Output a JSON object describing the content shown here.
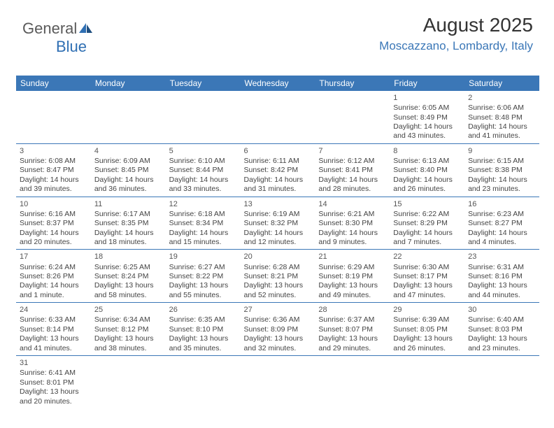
{
  "logo": {
    "text1": "General",
    "text2": "Blue"
  },
  "header": {
    "month": "August 2025",
    "location": "Moscazzano, Lombardy, Italy"
  },
  "colors": {
    "header_bg": "#3b77b7",
    "header_text": "#ffffff",
    "accent": "#3b77b7",
    "body_text": "#444444"
  },
  "weekdays": [
    "Sunday",
    "Monday",
    "Tuesday",
    "Wednesday",
    "Thursday",
    "Friday",
    "Saturday"
  ],
  "weeks": [
    [
      null,
      null,
      null,
      null,
      null,
      {
        "day": "1",
        "sunrise": "Sunrise: 6:05 AM",
        "sunset": "Sunset: 8:49 PM",
        "daylight": "Daylight: 14 hours and 43 minutes."
      },
      {
        "day": "2",
        "sunrise": "Sunrise: 6:06 AM",
        "sunset": "Sunset: 8:48 PM",
        "daylight": "Daylight: 14 hours and 41 minutes."
      }
    ],
    [
      {
        "day": "3",
        "sunrise": "Sunrise: 6:08 AM",
        "sunset": "Sunset: 8:47 PM",
        "daylight": "Daylight: 14 hours and 39 minutes."
      },
      {
        "day": "4",
        "sunrise": "Sunrise: 6:09 AM",
        "sunset": "Sunset: 8:45 PM",
        "daylight": "Daylight: 14 hours and 36 minutes."
      },
      {
        "day": "5",
        "sunrise": "Sunrise: 6:10 AM",
        "sunset": "Sunset: 8:44 PM",
        "daylight": "Daylight: 14 hours and 33 minutes."
      },
      {
        "day": "6",
        "sunrise": "Sunrise: 6:11 AM",
        "sunset": "Sunset: 8:42 PM",
        "daylight": "Daylight: 14 hours and 31 minutes."
      },
      {
        "day": "7",
        "sunrise": "Sunrise: 6:12 AM",
        "sunset": "Sunset: 8:41 PM",
        "daylight": "Daylight: 14 hours and 28 minutes."
      },
      {
        "day": "8",
        "sunrise": "Sunrise: 6:13 AM",
        "sunset": "Sunset: 8:40 PM",
        "daylight": "Daylight: 14 hours and 26 minutes."
      },
      {
        "day": "9",
        "sunrise": "Sunrise: 6:15 AM",
        "sunset": "Sunset: 8:38 PM",
        "daylight": "Daylight: 14 hours and 23 minutes."
      }
    ],
    [
      {
        "day": "10",
        "sunrise": "Sunrise: 6:16 AM",
        "sunset": "Sunset: 8:37 PM",
        "daylight": "Daylight: 14 hours and 20 minutes."
      },
      {
        "day": "11",
        "sunrise": "Sunrise: 6:17 AM",
        "sunset": "Sunset: 8:35 PM",
        "daylight": "Daylight: 14 hours and 18 minutes."
      },
      {
        "day": "12",
        "sunrise": "Sunrise: 6:18 AM",
        "sunset": "Sunset: 8:34 PM",
        "daylight": "Daylight: 14 hours and 15 minutes."
      },
      {
        "day": "13",
        "sunrise": "Sunrise: 6:19 AM",
        "sunset": "Sunset: 8:32 PM",
        "daylight": "Daylight: 14 hours and 12 minutes."
      },
      {
        "day": "14",
        "sunrise": "Sunrise: 6:21 AM",
        "sunset": "Sunset: 8:30 PM",
        "daylight": "Daylight: 14 hours and 9 minutes."
      },
      {
        "day": "15",
        "sunrise": "Sunrise: 6:22 AM",
        "sunset": "Sunset: 8:29 PM",
        "daylight": "Daylight: 14 hours and 7 minutes."
      },
      {
        "day": "16",
        "sunrise": "Sunrise: 6:23 AM",
        "sunset": "Sunset: 8:27 PM",
        "daylight": "Daylight: 14 hours and 4 minutes."
      }
    ],
    [
      {
        "day": "17",
        "sunrise": "Sunrise: 6:24 AM",
        "sunset": "Sunset: 8:26 PM",
        "daylight": "Daylight: 14 hours and 1 minute."
      },
      {
        "day": "18",
        "sunrise": "Sunrise: 6:25 AM",
        "sunset": "Sunset: 8:24 PM",
        "daylight": "Daylight: 13 hours and 58 minutes."
      },
      {
        "day": "19",
        "sunrise": "Sunrise: 6:27 AM",
        "sunset": "Sunset: 8:22 PM",
        "daylight": "Daylight: 13 hours and 55 minutes."
      },
      {
        "day": "20",
        "sunrise": "Sunrise: 6:28 AM",
        "sunset": "Sunset: 8:21 PM",
        "daylight": "Daylight: 13 hours and 52 minutes."
      },
      {
        "day": "21",
        "sunrise": "Sunrise: 6:29 AM",
        "sunset": "Sunset: 8:19 PM",
        "daylight": "Daylight: 13 hours and 49 minutes."
      },
      {
        "day": "22",
        "sunrise": "Sunrise: 6:30 AM",
        "sunset": "Sunset: 8:17 PM",
        "daylight": "Daylight: 13 hours and 47 minutes."
      },
      {
        "day": "23",
        "sunrise": "Sunrise: 6:31 AM",
        "sunset": "Sunset: 8:16 PM",
        "daylight": "Daylight: 13 hours and 44 minutes."
      }
    ],
    [
      {
        "day": "24",
        "sunrise": "Sunrise: 6:33 AM",
        "sunset": "Sunset: 8:14 PM",
        "daylight": "Daylight: 13 hours and 41 minutes."
      },
      {
        "day": "25",
        "sunrise": "Sunrise: 6:34 AM",
        "sunset": "Sunset: 8:12 PM",
        "daylight": "Daylight: 13 hours and 38 minutes."
      },
      {
        "day": "26",
        "sunrise": "Sunrise: 6:35 AM",
        "sunset": "Sunset: 8:10 PM",
        "daylight": "Daylight: 13 hours and 35 minutes."
      },
      {
        "day": "27",
        "sunrise": "Sunrise: 6:36 AM",
        "sunset": "Sunset: 8:09 PM",
        "daylight": "Daylight: 13 hours and 32 minutes."
      },
      {
        "day": "28",
        "sunrise": "Sunrise: 6:37 AM",
        "sunset": "Sunset: 8:07 PM",
        "daylight": "Daylight: 13 hours and 29 minutes."
      },
      {
        "day": "29",
        "sunrise": "Sunrise: 6:39 AM",
        "sunset": "Sunset: 8:05 PM",
        "daylight": "Daylight: 13 hours and 26 minutes."
      },
      {
        "day": "30",
        "sunrise": "Sunrise: 6:40 AM",
        "sunset": "Sunset: 8:03 PM",
        "daylight": "Daylight: 13 hours and 23 minutes."
      }
    ],
    [
      {
        "day": "31",
        "sunrise": "Sunrise: 6:41 AM",
        "sunset": "Sunset: 8:01 PM",
        "daylight": "Daylight: 13 hours and 20 minutes."
      },
      null,
      null,
      null,
      null,
      null,
      null
    ]
  ]
}
